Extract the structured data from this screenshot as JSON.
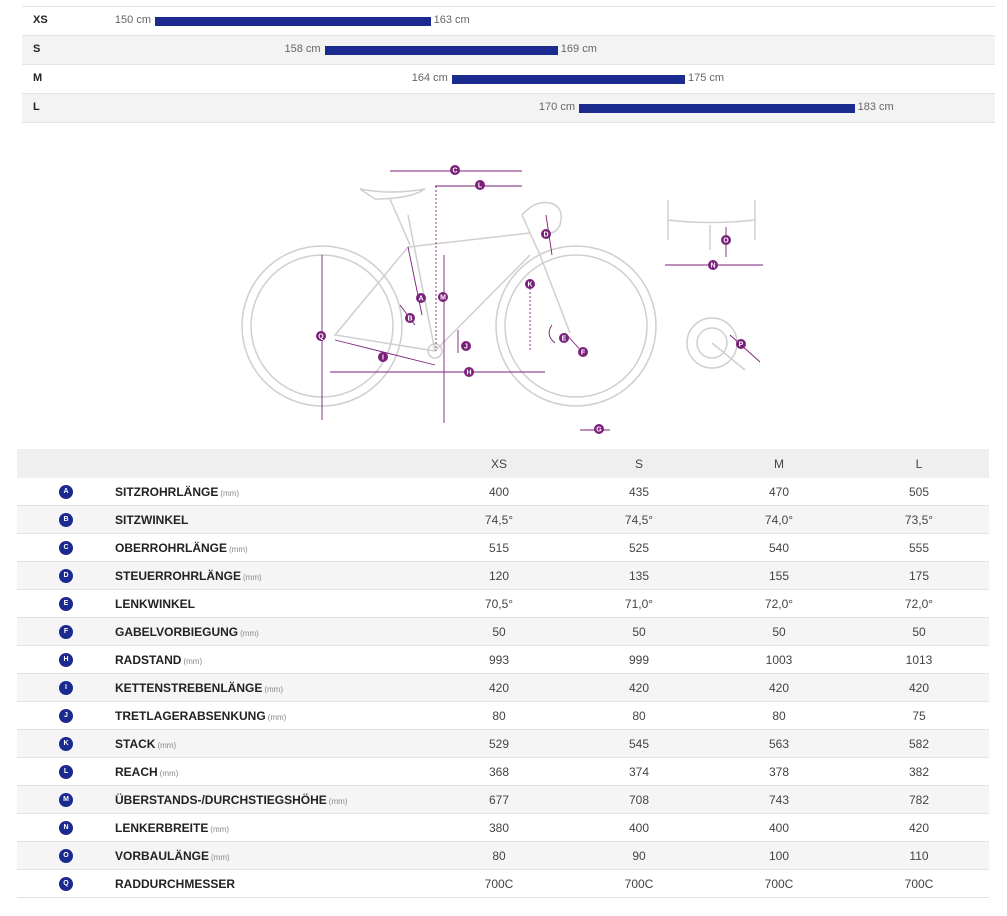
{
  "size_ranges": [
    {
      "size": "XS",
      "min": "150 cm",
      "max": "163 cm",
      "min_cm": 150,
      "max_cm": 163
    },
    {
      "size": "S",
      "min": "158 cm",
      "max": "169 cm",
      "min_cm": 158,
      "max_cm": 169
    },
    {
      "size": "M",
      "min": "164 cm",
      "max": "175 cm",
      "min_cm": 164,
      "max_cm": 175
    },
    {
      "size": "L",
      "min": "170 cm",
      "max": "183 cm",
      "min_cm": 170,
      "max_cm": 183
    }
  ],
  "colors": {
    "bar": "#1a2a8f",
    "diagram": "#7a1f7a",
    "frame": "#cfcfcf"
  },
  "diagram_labels": [
    "A",
    "B",
    "C",
    "D",
    "E",
    "F",
    "G",
    "H",
    "I",
    "J",
    "K",
    "L",
    "M",
    "N",
    "O",
    "P",
    "Q"
  ],
  "table": {
    "headers": [
      "XS",
      "S",
      "M",
      "L"
    ],
    "rows": [
      {
        "letter": "A",
        "label": "SITZROHRLÄNGE",
        "unit": "(mm)",
        "values": [
          "400",
          "435",
          "470",
          "505"
        ]
      },
      {
        "letter": "B",
        "label": "SITZWINKEL",
        "unit": "",
        "values": [
          "74,5°",
          "74,5°",
          "74,0°",
          "73,5°"
        ]
      },
      {
        "letter": "C",
        "label": "OBERROHRLÄNGE",
        "unit": "(mm)",
        "values": [
          "515",
          "525",
          "540",
          "555"
        ]
      },
      {
        "letter": "D",
        "label": "STEUERROHRLÄNGE",
        "unit": "(mm)",
        "values": [
          "120",
          "135",
          "155",
          "175"
        ]
      },
      {
        "letter": "E",
        "label": "LENKWINKEL",
        "unit": "",
        "values": [
          "70,5°",
          "71,0°",
          "72,0°",
          "72,0°"
        ]
      },
      {
        "letter": "F",
        "label": "GABELVORBIEGUNG",
        "unit": "(mm)",
        "values": [
          "50",
          "50",
          "50",
          "50"
        ]
      },
      {
        "letter": "H",
        "label": "RADSTAND",
        "unit": "(mm)",
        "values": [
          "993",
          "999",
          "1003",
          "1013"
        ]
      },
      {
        "letter": "I",
        "label": "KETTENSTREBENLÄNGE",
        "unit": "(mm)",
        "values": [
          "420",
          "420",
          "420",
          "420"
        ]
      },
      {
        "letter": "J",
        "label": "TRETLAGERABSENKUNG",
        "unit": "(mm)",
        "values": [
          "80",
          "80",
          "80",
          "75"
        ]
      },
      {
        "letter": "K",
        "label": "STACK",
        "unit": "(mm)",
        "values": [
          "529",
          "545",
          "563",
          "582"
        ]
      },
      {
        "letter": "L",
        "label": "REACH",
        "unit": "(mm)",
        "values": [
          "368",
          "374",
          "378",
          "382"
        ]
      },
      {
        "letter": "M",
        "label": "ÜBERSTANDS-/DURCHSTIEGSHÖHE",
        "unit": "(mm)",
        "values": [
          "677",
          "708",
          "743",
          "782"
        ]
      },
      {
        "letter": "N",
        "label": "LENKERBREITE",
        "unit": "(mm)",
        "values": [
          "380",
          "400",
          "400",
          "420"
        ]
      },
      {
        "letter": "O",
        "label": "VORBAULÄNGE",
        "unit": "(mm)",
        "values": [
          "80",
          "90",
          "100",
          "110"
        ]
      },
      {
        "letter": "Q",
        "label": "RADDURCHMESSER",
        "unit": "",
        "values": [
          "700C",
          "700C",
          "700C",
          "700C"
        ]
      }
    ]
  }
}
